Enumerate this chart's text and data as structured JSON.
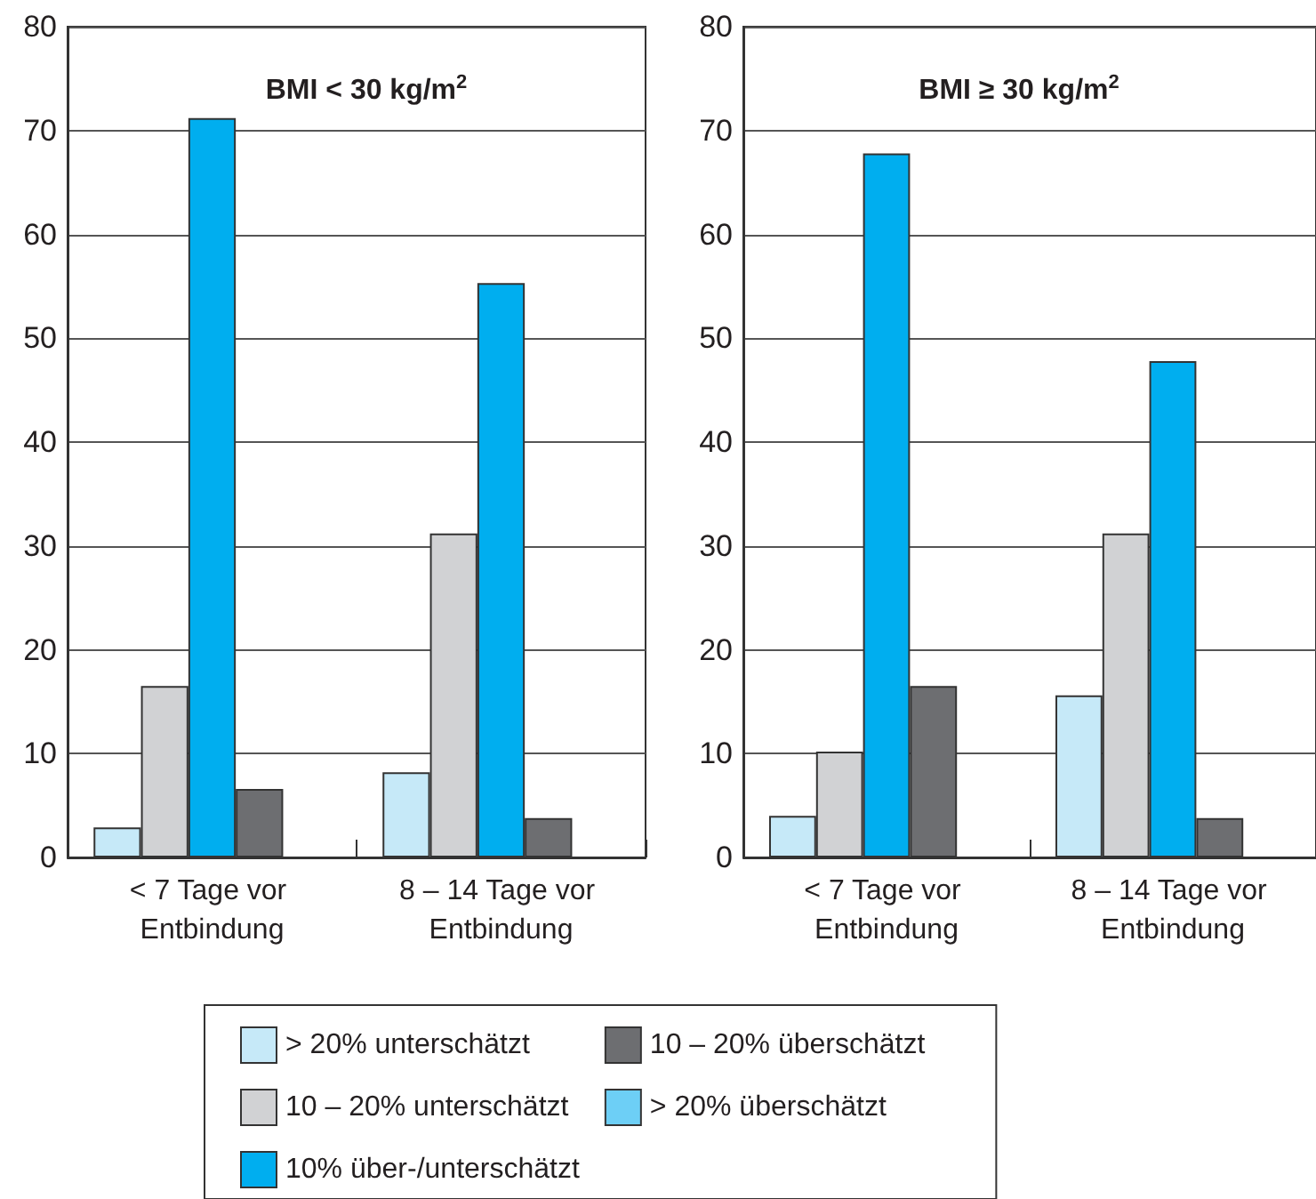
{
  "chart_data": [
    {
      "type": "bar",
      "title": "BMI < 30 kg/m$^{2}$",
      "categories": [
        "< 7 Tage vor Entbindung",
        "8 – 14 Tage vor Entbindung"
      ],
      "series": [
        {
          "name": "> 20% unterschätzt",
          "color": "#c6e9f8",
          "values": [
            2.9,
            8.2
          ]
        },
        {
          "name": "10 – 20% unterschätzt",
          "color": "#d1d2d4",
          "values": [
            16.5,
            31.2
          ]
        },
        {
          "name": "10% über-/unterschätzt",
          "color": "#00aeef",
          "values": [
            71.2,
            55.3
          ]
        },
        {
          "name": "10 – 20% überschätzt",
          "color": "#6d6e71",
          "values": [
            6.6,
            3.8
          ]
        },
        {
          "name": "> 20% überschätzt",
          "color": "#6dcff6",
          "values": [
            null,
            null
          ]
        }
      ],
      "ylim": [
        0,
        80
      ],
      "yticks": [
        0,
        10,
        20,
        30,
        40,
        50,
        60,
        70,
        80
      ],
      "grid": "y",
      "legend": "bottom"
    },
    {
      "type": "bar",
      "title": "BMI ≥ 30 kg/m$^{2}$",
      "categories": [
        "< 7 Tage vor Entbindung",
        "8 – 14 Tage vor Entbindung"
      ],
      "series": [
        {
          "color": "#c6e9f8",
          "values": [
            4.0,
            15.6
          ]
        },
        {
          "color": "#d1d2d4",
          "values": [
            10.2,
            31.2
          ]
        },
        {
          "color": "#00aeef",
          "values": [
            67.8,
            47.8
          ]
        },
        {
          "color": "#6d6e71",
          "values": [
            16.5,
            3.8
          ]
        },
        {
          "color": "#6dcff6",
          "values": [
            null,
            null
          ]
        }
      ],
      "ylim": [
        0,
        80
      ],
      "yticks": [
        0,
        10,
        20,
        30,
        40,
        50,
        60,
        70,
        80
      ],
      "grid": "y",
      "legend": false
    }
  ]
}
